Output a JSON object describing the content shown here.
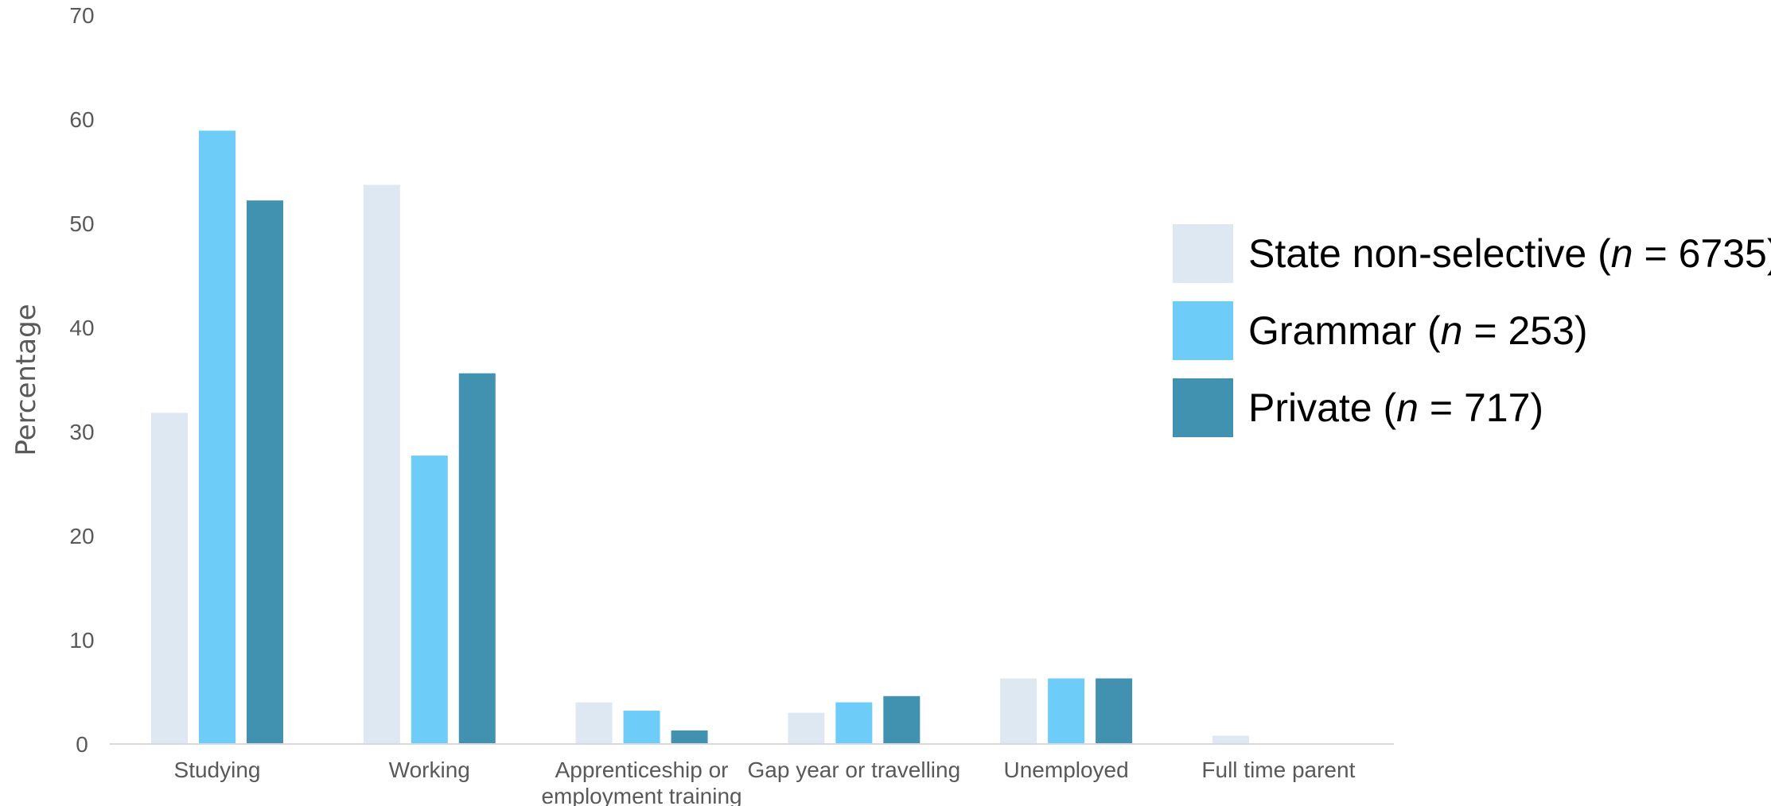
{
  "chart_data": {
    "type": "bar",
    "categories": [
      [
        "Studying"
      ],
      [
        "Working"
      ],
      [
        "Apprenticeship or",
        "employment training"
      ],
      [
        "Gap year or travelling"
      ],
      [
        "Unemployed"
      ],
      [
        "Full time parent"
      ]
    ],
    "series": [
      {
        "name": "State non-selective",
        "n_label": "n",
        "n_value": "6735",
        "color": "#DEE8F3",
        "values": [
          31.8,
          53.7,
          4.0,
          3.0,
          6.3,
          0.8
        ]
      },
      {
        "name": "Grammar",
        "n_label": "n",
        "n_value": "253",
        "color": "#6DCDF8",
        "values": [
          58.9,
          27.7,
          3.2,
          4.0,
          6.3,
          0
        ]
      },
      {
        "name": "Private",
        "n_label": "n",
        "n_value": "717",
        "color": "#4192B0",
        "values": [
          52.2,
          35.6,
          1.3,
          4.6,
          6.3,
          0
        ]
      }
    ],
    "yticks": [
      "0",
      "10",
      "20",
      "30",
      "40",
      "50",
      "60",
      "70"
    ],
    "ylabel": "Percentage",
    "xlabel": "",
    "title": "",
    "ylim": [
      0,
      70
    ],
    "grid": false,
    "legend_position": "right"
  },
  "colors": {
    "text": "#595959",
    "axis": "#D9D9D9"
  }
}
